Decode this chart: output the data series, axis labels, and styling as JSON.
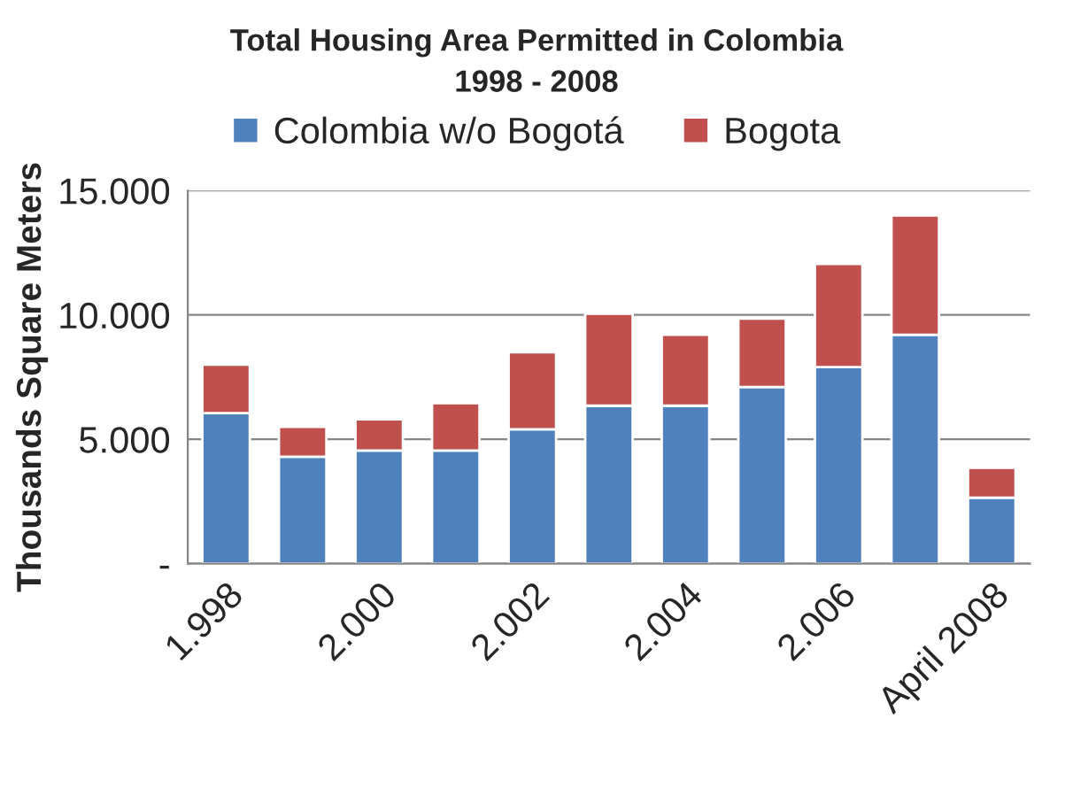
{
  "chart_data": {
    "type": "bar",
    "title": "Total Housing Area Permitted in Colombia\n1998 - 2008",
    "ylabel": "Thousands Square Meters",
    "categories": [
      "1.998",
      null,
      "2.000",
      null,
      "2.002",
      null,
      "2.004",
      null,
      "2.006",
      null,
      "April 2008"
    ],
    "series": [
      {
        "name": "Colombia w/o Bogotá",
        "color": "#4f81bd",
        "values": [
          6050,
          4300,
          4550,
          4550,
          5400,
          6350,
          6350,
          7100,
          7900,
          9200,
          2650
        ]
      },
      {
        "name": "Bogota",
        "color": "#c0504d",
        "values": [
          1950,
          1200,
          1250,
          1900,
          3100,
          3700,
          2850,
          2750,
          4150,
          4800,
          1200
        ]
      }
    ],
    "stacked": true,
    "ylim": [
      0,
      15000
    ],
    "yticks": [
      {
        "value": 0,
        "label": "-"
      },
      {
        "value": 5000,
        "label": "5.000"
      },
      {
        "value": 10000,
        "label": "10.000"
      },
      {
        "value": 15000,
        "label": "15.000"
      }
    ],
    "grid": "y",
    "legend": "top"
  }
}
